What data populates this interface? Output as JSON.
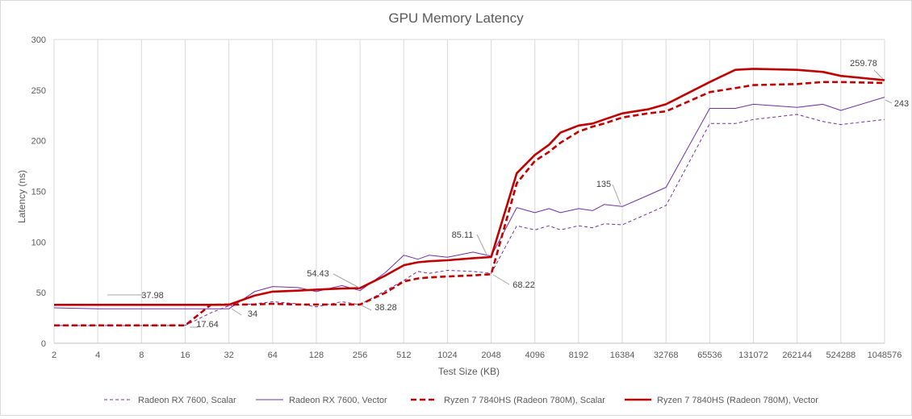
{
  "chart_data": {
    "type": "line",
    "title": "GPU Memory Latency",
    "xlabel": "Test Size (KB)",
    "ylabel": "Latency (ns)",
    "ylim": [
      0,
      300
    ],
    "yticks": [
      "0",
      "50",
      "100",
      "150",
      "200",
      "250",
      "300"
    ],
    "x_scale": "log2",
    "xlim": [
      2,
      1048576
    ],
    "xticks": [
      "2",
      "4",
      "8",
      "16",
      "32",
      "64",
      "128",
      "256",
      "512",
      "1024",
      "2048",
      "4096",
      "8192",
      "16384",
      "32768",
      "65536",
      "131072",
      "262144",
      "524288",
      "1048576"
    ],
    "grid": "vertical",
    "legend_position": "bottom",
    "x": [
      2,
      4,
      8,
      12,
      16,
      24,
      32,
      48,
      64,
      96,
      128,
      192,
      256,
      384,
      512,
      640,
      768,
      1024,
      1536,
      2048,
      3072,
      4096,
      5120,
      6144,
      8192,
      10240,
      12288,
      16384,
      24576,
      32768,
      65536,
      98304,
      131072,
      262144,
      393216,
      524288,
      1048576
    ],
    "series": [
      {
        "name": "Radeon RX 7600, Scalar",
        "color": "#7030a0",
        "style": "dashed-thin",
        "values": [
          17.5,
          17.5,
          17.5,
          17.5,
          17.64,
          30,
          37,
          39,
          41,
          39,
          36,
          41,
          38,
          52,
          62,
          71,
          69,
          72,
          71,
          69,
          116,
          112,
          116,
          112,
          116,
          114,
          118,
          117,
          128,
          136,
          217,
          217,
          221,
          226,
          219,
          216,
          221
        ]
      },
      {
        "name": "Radeon RX 7600, Vector",
        "color": "#7030a0",
        "style": "solid-thin",
        "values": [
          35,
          34,
          34,
          34,
          34,
          34,
          34,
          51,
          56,
          55,
          51,
          57,
          52,
          70,
          87,
          83,
          87,
          85,
          90,
          86,
          134,
          129,
          133,
          129,
          133,
          131,
          137,
          135,
          146,
          154,
          232,
          232,
          236,
          233,
          236,
          230,
          243
        ]
      },
      {
        "name": "Ryzen 7 7840HS (Radeon 780M), Scalar",
        "color": "#c00000",
        "style": "dashed-thick",
        "values": [
          17.64,
          17.64,
          17.64,
          17.64,
          17.64,
          38,
          38.28,
          38.28,
          39,
          38.28,
          38.28,
          38.28,
          38.28,
          50,
          61,
          64,
          65,
          66,
          67,
          68.22,
          158,
          180,
          189,
          198,
          209,
          214,
          217,
          223,
          227,
          229,
          248,
          252,
          255,
          256,
          258,
          258,
          257
        ]
      },
      {
        "name": "Ryzen 7 7840HS (Radeon 780M), Vector",
        "color": "#c00000",
        "style": "solid-thick",
        "values": [
          37.98,
          37.98,
          37.98,
          37.98,
          37.98,
          37.98,
          38,
          47,
          51,
          52,
          53,
          54,
          54.43,
          67,
          77,
          80,
          81,
          82,
          84,
          85.11,
          168,
          186,
          196,
          208,
          215,
          217,
          221,
          227,
          231,
          236,
          258,
          270,
          271,
          270,
          268,
          264,
          259.78
        ]
      }
    ],
    "data_labels": [
      {
        "text": "37.98"
      },
      {
        "text": "17.64"
      },
      {
        "text": "34"
      },
      {
        "text": "54.43"
      },
      {
        "text": "38.28"
      },
      {
        "text": "85.11"
      },
      {
        "text": "68.22"
      },
      {
        "text": "135"
      },
      {
        "text": "259.78"
      },
      {
        "text": "243"
      }
    ]
  }
}
